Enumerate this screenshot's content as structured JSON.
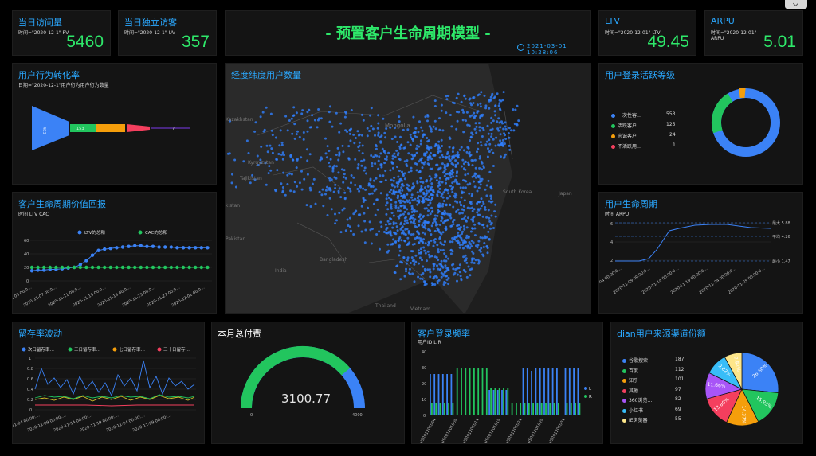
{
  "header": {
    "title": "- 预置客户生命周期模型 -",
    "time": "2021-03-01 10:28:06"
  },
  "kpis": {
    "pv": {
      "title": "当日访问量",
      "sub": "时间=\"2020-12-1\" PV",
      "value": "5460"
    },
    "uv": {
      "title": "当日独立访客",
      "sub": "时间=\"2020-12-1\" UV",
      "value": "357"
    },
    "ltv": {
      "title": "LTV",
      "sub": "时间=\"2020-12-01\" LTV",
      "value": "49.45"
    },
    "arpu": {
      "title": "ARPU",
      "sub": "时间=\"2020-12-01\"",
      "sub2": "ARPU",
      "value": "5.01"
    }
  },
  "funnel": {
    "title": "用户行为转化率",
    "sub": "日期=\"2020-12-1\"用户行为用户行为数量",
    "segments": [
      "483",
      "153",
      "",
      "",
      "7"
    ],
    "colors": [
      "#3b82f6",
      "#22c55e",
      "#f59e0b",
      "#f43f5e",
      "#7c3aed"
    ]
  },
  "map": {
    "title": "经度纬度用户数量",
    "labels": [
      "Mongolia",
      "Kazakhstan",
      "Kyrgyzstan",
      "Tajikistan",
      "Pakistan",
      "India",
      "Bangladesh",
      "Thailand",
      "Vietnam",
      "South Korea",
      "Japan",
      "kistan",
      "istan"
    ]
  },
  "ltvcac": {
    "title": "客户生命周期价值回报",
    "sub": "时间 LTV CAC",
    "legend": [
      "LTV的总和",
      "CAC的总和"
    ],
    "colors": [
      "#3b82f6",
      "#22c55e"
    ],
    "yticks": [
      "0",
      "20",
      "40",
      "60"
    ],
    "xticks": [
      "2-11-03 00:0…",
      "2020-11-07 00:0…",
      "2020-11-11 00:0…",
      "2020-11-15 00:0…",
      "2020-11-19 00:0…",
      "2020-11-23 00:0…",
      "2020-11-27 00:0…",
      "2020-12-01 00:0…"
    ]
  },
  "activity": {
    "title": "用户登录活跃等级",
    "colors": [
      "#3b82f6",
      "#22c55e",
      "#f59e0b",
      "#f43f5e"
    ],
    "rows": [
      {
        "label": "一次性客…",
        "value": "553"
      },
      {
        "label": "活跃客户",
        "value": "125"
      },
      {
        "label": "忠诚客户",
        "value": "24"
      },
      {
        "label": "不活跃用…",
        "value": "1"
      }
    ]
  },
  "lifecycle": {
    "title": "用户生命周期",
    "sub": "时间 ARPU",
    "yticks": [
      "2",
      "4",
      "6"
    ],
    "marks": [
      {
        "label": "最大 5.88"
      },
      {
        "label": "平均 4.26"
      },
      {
        "label": "最小 1.47"
      }
    ],
    "xticks": [
      "1-04 00:00:0…",
      "2020-11-09 00:00:0…",
      "2020-11-14 00:00:0…",
      "2020-11-19 00:00:0…",
      "2020-11-24 00:00:0…",
      "2020-11-29 00:00:0…"
    ]
  },
  "retention": {
    "title": "留存率波动",
    "legend": [
      "次日留存率…",
      "三日留存率…",
      "七日留存率…",
      "三十日留存…"
    ],
    "colors": [
      "#3b82f6",
      "#22c55e",
      "#f59e0b",
      "#f43f5e"
    ],
    "yticks": [
      "0",
      "0.2",
      "0.4",
      "0.6",
      "0.8",
      "1"
    ],
    "xticks": [
      "2020-11-04 00:00:…",
      "2020-11-09 00:00:…",
      "2020-11-14 00:00:…",
      "2020-11-19 00:00:…",
      "2020-11-24 00:00:…",
      "2020-11-29 00:00:…"
    ]
  },
  "payment": {
    "title": "本月总付费",
    "value": "3100.77",
    "min": "0",
    "max": "4000",
    "fraction": 0.775
  },
  "freq": {
    "title": "客户登录频率",
    "sub": "用户ID L R",
    "legend": [
      "L",
      "R"
    ],
    "colors": [
      "#3b82f6",
      "#22c55e"
    ],
    "yticks": [
      "0",
      "10",
      "20",
      "30",
      "40"
    ],
    "xticks": [
      "US201201004",
      "US201201009",
      "US201201014",
      "US201201019",
      "US201201024",
      "US201201029",
      "US201201034"
    ]
  },
  "source": {
    "title": "dian用户来源渠道份额",
    "rows": [
      {
        "label": "谷歌搜索",
        "value": "187",
        "color": "#3b82f6"
      },
      {
        "label": "百度",
        "value": "112",
        "color": "#22c55e"
      },
      {
        "label": "知乎",
        "value": "101",
        "color": "#f59e0b"
      },
      {
        "label": "其他",
        "value": "97",
        "color": "#f43f5e"
      },
      {
        "label": "360浏览…",
        "value": "82",
        "color": "#a855f7"
      },
      {
        "label": "小红书",
        "value": "69",
        "color": "#38bdf8"
      },
      {
        "label": "IE浏览器",
        "value": "55",
        "color": "#fde68a"
      }
    ],
    "pct": [
      "26.60%",
      "15.93%",
      "14.37%",
      "13.80%",
      "11.66%",
      "9.82%",
      "7.82%"
    ]
  }
}
